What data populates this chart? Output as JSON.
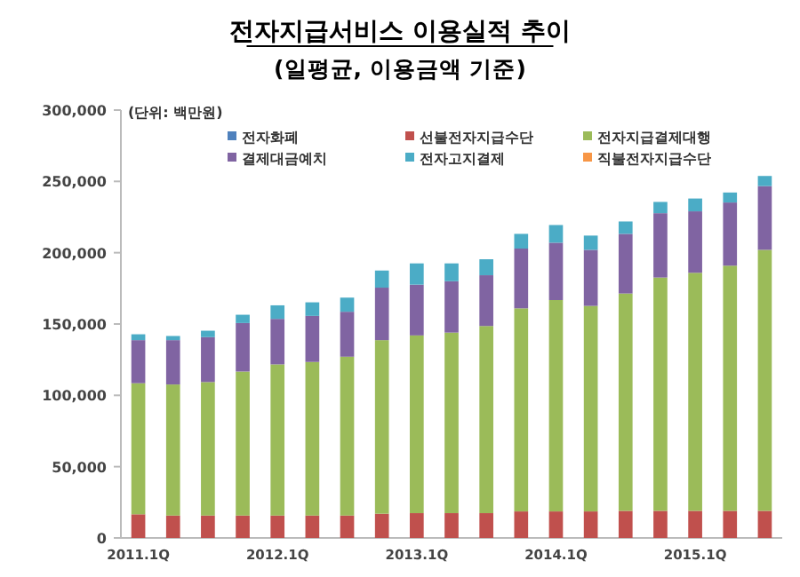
{
  "chart_data": {
    "type": "bar",
    "stacked": true,
    "title": "전자지급서비스 이용실적 추이",
    "subtitle": "(일평균, 이용금액 기준)",
    "annotations": [
      "(단위: 백만원)"
    ],
    "categories": [
      "2011.1Q",
      null,
      null,
      null,
      "2012.1Q",
      null,
      null,
      null,
      "2013.1Q",
      null,
      null,
      null,
      "2014.1Q",
      null,
      null,
      null,
      "2015.1Q",
      null,
      null
    ],
    "ylim": [
      0,
      300000
    ],
    "yticks": [
      {
        "value": 0,
        "label": "0"
      },
      {
        "value": 50000,
        "label": "50,000"
      },
      {
        "value": 100000,
        "label": "100,000"
      },
      {
        "value": 150000,
        "label": "150,000"
      },
      {
        "value": 200000,
        "label": "200,000"
      },
      {
        "value": 250000,
        "label": "250,000"
      },
      {
        "value": 300000,
        "label": "300,000"
      }
    ],
    "legend": "top",
    "grid": false,
    "series": [
      {
        "name": "전자화폐",
        "color": "#4f81bd",
        "values": [
          0,
          0,
          0,
          0,
          0,
          0,
          0,
          0,
          0,
          0,
          0,
          0,
          0,
          0,
          0,
          0,
          0,
          0,
          0
        ]
      },
      {
        "name": "선불전자지급수단",
        "color": "#c0504d",
        "values": [
          16600,
          15700,
          15700,
          15700,
          15700,
          15700,
          15700,
          17000,
          17400,
          17400,
          17400,
          18600,
          18600,
          18600,
          19000,
          19000,
          19000,
          19000,
          19000
        ]
      },
      {
        "name": "전자지급결제대행",
        "color": "#9bbb59",
        "values": [
          91900,
          91900,
          93600,
          101000,
          106000,
          107700,
          111400,
          121700,
          124600,
          126600,
          131200,
          142400,
          148200,
          144100,
          152400,
          163600,
          166900,
          171900,
          183000
        ]
      },
      {
        "name": "결제대금예치",
        "color": "#8064a2",
        "values": [
          30200,
          31100,
          31500,
          34000,
          31900,
          32300,
          31500,
          36800,
          35600,
          36000,
          35600,
          41900,
          40200,
          39300,
          41800,
          45100,
          43100,
          44300,
          44700
        ]
      },
      {
        "name": "전자고지결제",
        "color": "#4bacc6",
        "values": [
          4100,
          2900,
          4500,
          5800,
          9500,
          9500,
          9900,
          12000,
          14900,
          12500,
          11200,
          10300,
          12400,
          10000,
          8700,
          7900,
          9000,
          7000,
          7100
        ]
      },
      {
        "name": "직불전자지급수단",
        "color": "#f79646",
        "values": [
          0,
          0,
          0,
          0,
          0,
          0,
          0,
          0,
          0,
          0,
          0,
          0,
          0,
          0,
          0,
          0,
          0,
          0,
          0
        ]
      }
    ]
  }
}
